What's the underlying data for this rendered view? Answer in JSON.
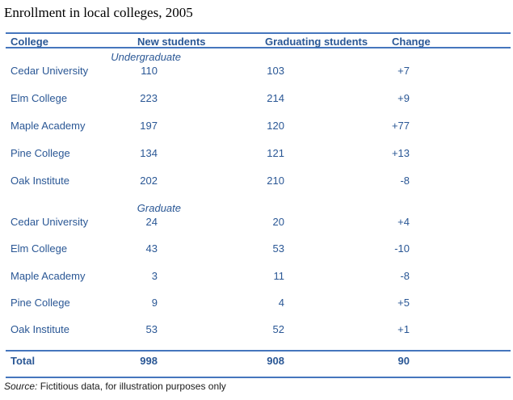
{
  "title": "Enrollment in local colleges, 2005",
  "table": {
    "headers": {
      "college": "College",
      "new_students": "New students",
      "graduating_students": "Graduating students",
      "change": "Change"
    },
    "sections": [
      {
        "label": "Undergraduate",
        "rows": [
          {
            "college": "Cedar University",
            "new_students": "110",
            "graduating_students": "103",
            "change": "+7"
          },
          {
            "college": "Elm College",
            "new_students": "223",
            "graduating_students": "214",
            "change": "+9"
          },
          {
            "college": "Maple Academy",
            "new_students": "197",
            "graduating_students": "120",
            "change": "+77"
          },
          {
            "college": "Pine College",
            "new_students": "134",
            "graduating_students": "121",
            "change": "+13"
          },
          {
            "college": "Oak Institute",
            "new_students": "202",
            "graduating_students": "210",
            "change": "-8"
          }
        ]
      },
      {
        "label": "Graduate",
        "rows": [
          {
            "college": "Cedar University",
            "new_students": "24",
            "graduating_students": "20",
            "change": "+4"
          },
          {
            "college": "Elm College",
            "new_students": "43",
            "graduating_students": "53",
            "change": "-10"
          },
          {
            "college": "Maple Academy",
            "new_students": "3",
            "graduating_students": "11",
            "change": "-8"
          },
          {
            "college": "Pine College",
            "new_students": "9",
            "graduating_students": "4",
            "change": "+5"
          },
          {
            "college": "Oak Institute",
            "new_students": "53",
            "graduating_students": "52",
            "change": "+1"
          }
        ]
      }
    ],
    "total": {
      "label": "Total",
      "new_students": "998",
      "graduating_students": "908",
      "change": "90"
    }
  },
  "source_note": {
    "prefix": "Source:",
    "text": " Fictitious data, for illustration purposes only"
  },
  "colors": {
    "table_text": "#2A5795",
    "rule_blue": "#4576BD",
    "title_text": "#000000"
  }
}
